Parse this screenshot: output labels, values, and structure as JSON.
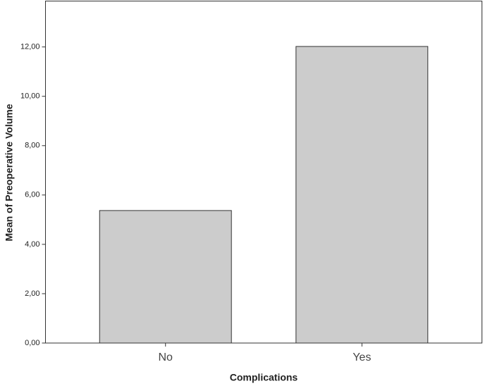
{
  "chart_data": {
    "type": "bar",
    "x_label": "Complications",
    "y_label": "Mean of Preoperative Volume",
    "categories": [
      "No",
      "Yes"
    ],
    "values": [
      5.37,
      12.02
    ],
    "color": "#cccccc",
    "ylim": [
      0,
      13.86
    ],
    "yticks": [
      {
        "value": 0,
        "label": "0,00"
      },
      {
        "value": 2,
        "label": "2,00"
      },
      {
        "value": 4,
        "label": "4,00"
      },
      {
        "value": 6,
        "label": "6,00"
      },
      {
        "value": 8,
        "label": "8,00"
      },
      {
        "value": 10,
        "label": "10,00"
      },
      {
        "value": 12,
        "label": "12,00"
      }
    ]
  }
}
